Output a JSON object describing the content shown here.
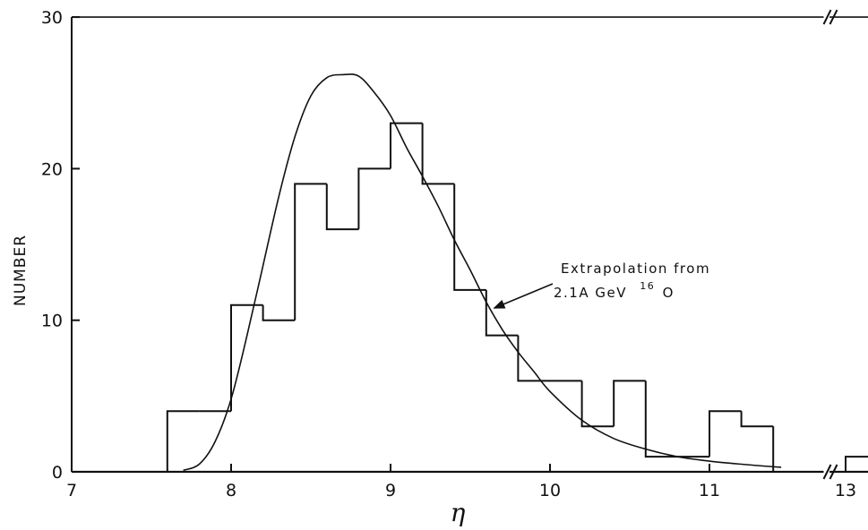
{
  "chart_data": {
    "type": "bar",
    "title": "",
    "xlabel": "η",
    "ylabel": "NUMBER",
    "xlim": [
      7,
      11.75
    ],
    "ylim": [
      0,
      30
    ],
    "axis_break": {
      "after": 11.75,
      "resume": 13,
      "resume_to": 13.25
    },
    "x_ticks": [
      7,
      8,
      9,
      10,
      11,
      13
    ],
    "y_ticks": [
      0,
      10,
      20,
      30
    ],
    "histogram": {
      "bin_width": 0.2,
      "bins": [
        {
          "start": 7.6,
          "value": 4
        },
        {
          "start": 7.8,
          "value": 4
        },
        {
          "start": 8.0,
          "value": 11
        },
        {
          "start": 8.2,
          "value": 10
        },
        {
          "start": 8.4,
          "value": 19
        },
        {
          "start": 8.6,
          "value": 16
        },
        {
          "start": 8.8,
          "value": 20
        },
        {
          "start": 9.0,
          "value": 23
        },
        {
          "start": 9.2,
          "value": 19
        },
        {
          "start": 9.4,
          "value": 12
        },
        {
          "start": 9.6,
          "value": 9
        },
        {
          "start": 9.8,
          "value": 6
        },
        {
          "start": 10.0,
          "value": 6
        },
        {
          "start": 10.2,
          "value": 3
        },
        {
          "start": 10.4,
          "value": 6
        },
        {
          "start": 10.6,
          "value": 1
        },
        {
          "start": 10.8,
          "value": 1
        },
        {
          "start": 11.0,
          "value": 4
        },
        {
          "start": 11.2,
          "value": 3
        },
        {
          "start": 13.0,
          "value": 1
        }
      ]
    },
    "fit_curve": {
      "x": [
        7.7,
        7.8,
        7.9,
        8.0,
        8.1,
        8.2,
        8.3,
        8.4,
        8.5,
        8.6,
        8.7,
        8.8,
        8.9,
        9.0,
        9.1,
        9.2,
        9.3,
        9.4,
        9.5,
        9.6,
        9.7,
        9.8,
        9.9,
        10.0,
        10.2,
        10.4,
        10.6,
        10.8,
        11.0,
        11.2,
        11.45
      ],
      "y": [
        0.1,
        0.5,
        2.0,
        4.8,
        9.0,
        13.6,
        18.2,
        22.1,
        24.8,
        26.0,
        26.2,
        26.1,
        25.0,
        23.5,
        21.4,
        19.5,
        17.5,
        15.3,
        13.3,
        11.2,
        9.4,
        7.9,
        6.6,
        5.3,
        3.4,
        2.2,
        1.5,
        1.0,
        0.7,
        0.5,
        0.3
      ]
    },
    "annotation": {
      "line1": "Extrapolation from",
      "line2_prefix": "2.1A GeV",
      "line2_sup": "16",
      "line2_suffix": "O",
      "points_to": {
        "x": 9.65,
        "y": 10.8
      }
    }
  }
}
